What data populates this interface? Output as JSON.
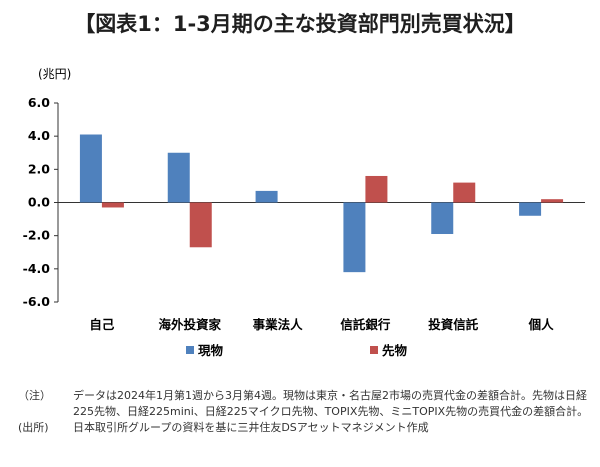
{
  "title": "【図表1：1-3月期の主な投資部門別売買状況】",
  "notes": {
    "note_label": "（注）",
    "note_text": "データは2024年1月第1週から3月第4週。現物は東京・名古屋2市場の売買代金の差額合計。先物は日経225先物、日経225mini、日経225マイクロ先物、TOPIX先物、ミニTOPIX先物の売買代金の差額合計。",
    "source_label": "(出所)",
    "source_text": "日本取引所グループの資料を基に三井住友DSアセットマネジメント作成"
  },
  "chart_data": {
    "type": "bar",
    "title": "【図表1：1-3月期の主な投資部門別売買状況】",
    "unit_label": "(兆円)",
    "categories": [
      "自己",
      "海外投資家",
      "事業法人",
      "信託銀行",
      "投資信託",
      "個人"
    ],
    "series": [
      {
        "name": "現物",
        "color": "#4f81bd",
        "values": [
          4.1,
          3.0,
          0.7,
          -4.2,
          -1.9,
          -0.8
        ]
      },
      {
        "name": "先物",
        "color": "#c0504d",
        "values": [
          -0.3,
          -2.7,
          0.0,
          1.6,
          1.2,
          0.2
        ]
      }
    ],
    "yticks": [
      "6.0",
      "4.0",
      "2.0",
      "0.0",
      "-2.0",
      "-4.0",
      "-6.0"
    ],
    "ylim": [
      -6,
      6
    ]
  }
}
